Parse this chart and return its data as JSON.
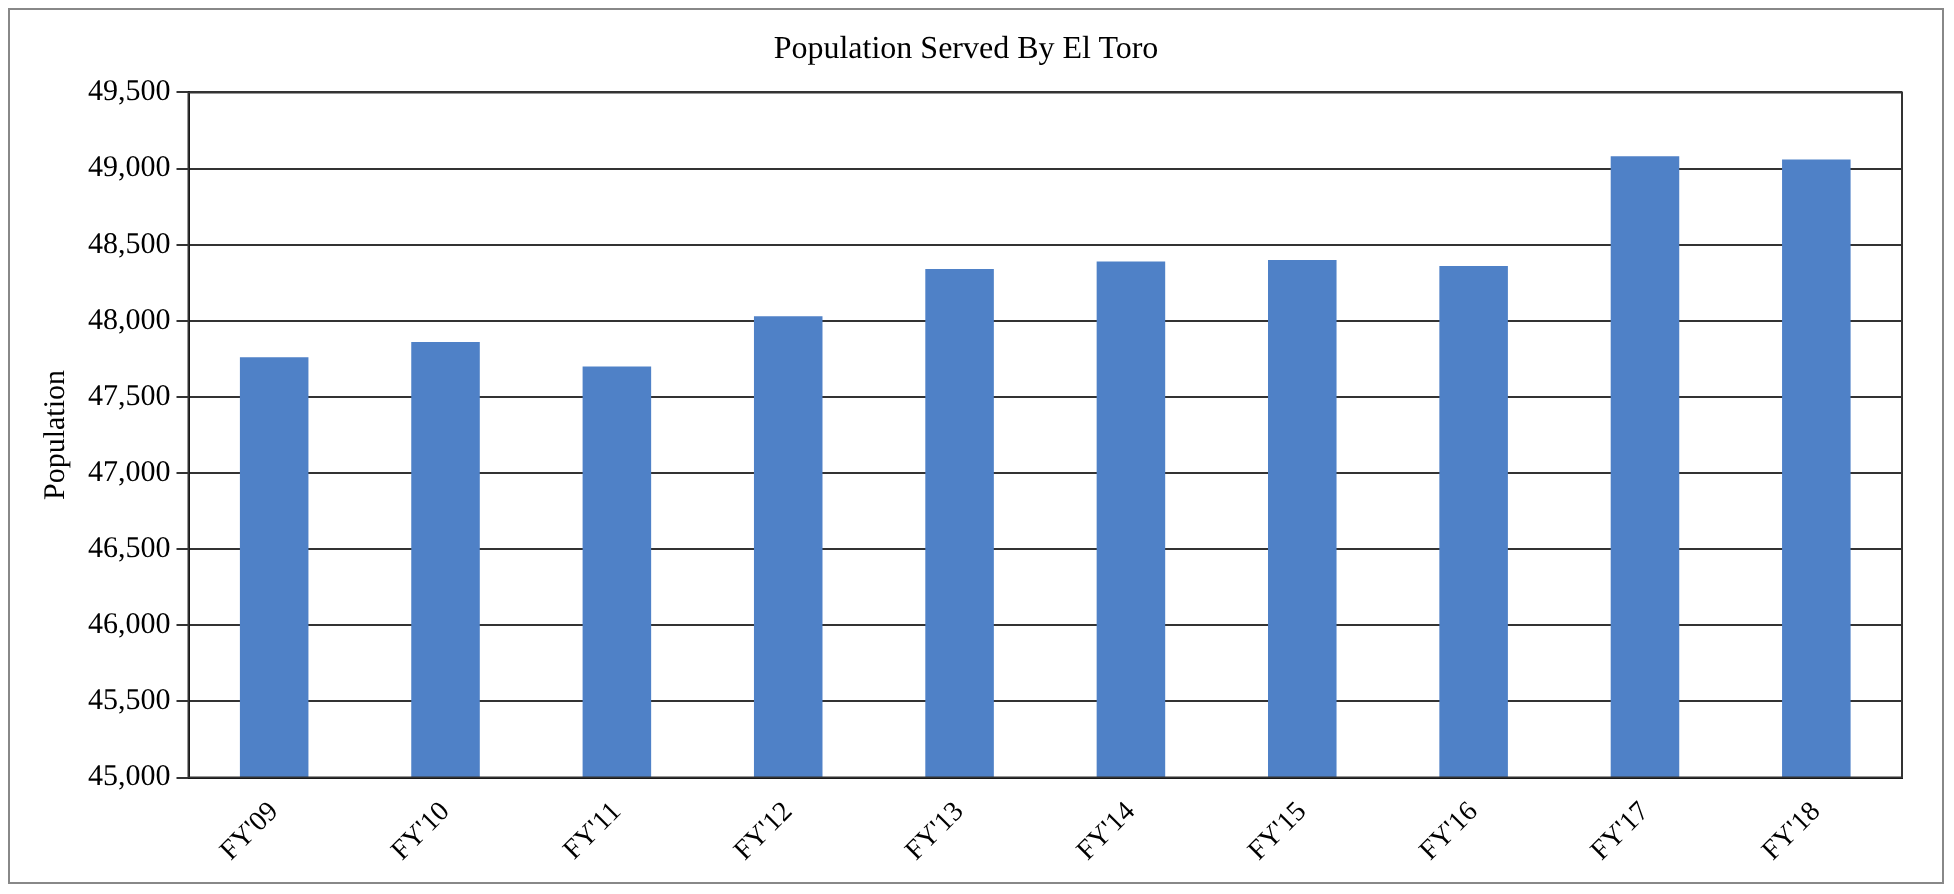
{
  "chart_data": {
    "type": "bar",
    "title": "Population Served By El Toro",
    "ylabel": "Population",
    "categories": [
      "FY'09",
      "FY'10",
      "FY'11",
      "FY'12",
      "FY'13",
      "FY'14",
      "FY'15",
      "FY'16",
      "FY'17",
      "FY'18"
    ],
    "values": [
      47760,
      47860,
      47700,
      48030,
      48340,
      48390,
      48400,
      48360,
      49080,
      49060
    ],
    "color": "#4f81c7",
    "ylim": [
      45000,
      49500
    ],
    "yticks": [
      {
        "value": 45000,
        "label": "45,000"
      },
      {
        "value": 45500,
        "label": "45,500"
      },
      {
        "value": 46000,
        "label": "46,000"
      },
      {
        "value": 46500,
        "label": "46,500"
      },
      {
        "value": 47000,
        "label": "47,000"
      },
      {
        "value": 47500,
        "label": "47,500"
      },
      {
        "value": 48000,
        "label": "48,000"
      },
      {
        "value": 48500,
        "label": "48,500"
      },
      {
        "value": 49000,
        "label": "49,000"
      },
      {
        "value": 49500,
        "label": "49,500"
      }
    ],
    "grid": "y"
  }
}
